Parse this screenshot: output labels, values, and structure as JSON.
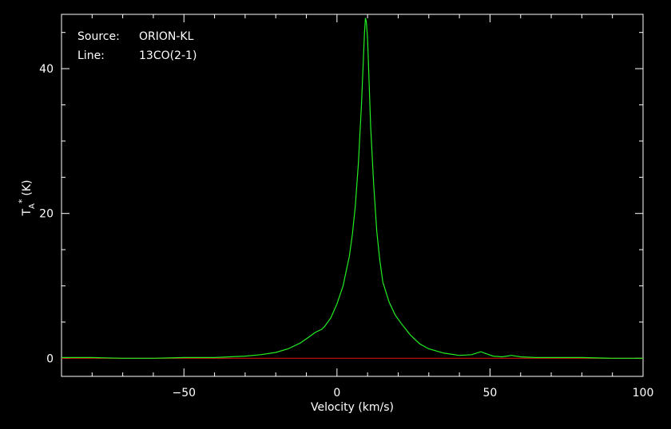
{
  "chart_data": {
    "type": "line",
    "xlabel": "Velocity (km/s)",
    "ylabel": {
      "main": "T",
      "sub": "A",
      "sup": "*",
      "unit": "(K)"
    },
    "xlim": [
      -90,
      100
    ],
    "ylim": [
      -2.5,
      47.5
    ],
    "x_ticks": [
      -50,
      0,
      50,
      100
    ],
    "y_ticks": [
      0,
      20,
      40
    ],
    "grid": false,
    "colors": {
      "background": "#000000",
      "frame": "#ffffff",
      "spectrum": "#22ee22",
      "baseline": "#cc1111"
    },
    "info": [
      {
        "key": "Source:",
        "value": "ORION-KL"
      },
      {
        "key": "Line:",
        "value": "13CO(2-1)"
      }
    ],
    "series": [
      {
        "x": [
          -90,
          -80,
          -70,
          -60,
          -50,
          -40,
          -35,
          -30,
          -25,
          -20,
          -16,
          -12,
          -9,
          -7,
          -5,
          -4,
          -2,
          0,
          2,
          3,
          4,
          5,
          6,
          7,
          8,
          8.6,
          9,
          9.3,
          9.6,
          10,
          10.5,
          11,
          12,
          13,
          14,
          15,
          17,
          19,
          21,
          24,
          27,
          30,
          35,
          40,
          44,
          47,
          49,
          51,
          54,
          57,
          60,
          65,
          70,
          80,
          90,
          100
        ],
        "y": [
          0.1,
          0.1,
          0.0,
          0.0,
          0.1,
          0.1,
          0.2,
          0.3,
          0.5,
          0.8,
          1.3,
          2.1,
          3.0,
          3.6,
          4.0,
          4.4,
          5.6,
          7.5,
          10.0,
          12.0,
          14.0,
          17.0,
          21.0,
          27.0,
          35.0,
          41.0,
          45.0,
          47.0,
          46.5,
          44.0,
          38.0,
          32.0,
          24.0,
          17.5,
          13.5,
          10.5,
          7.8,
          6.0,
          4.8,
          3.2,
          2.0,
          1.3,
          0.7,
          0.4,
          0.5,
          0.9,
          0.6,
          0.3,
          0.2,
          0.4,
          0.2,
          0.1,
          0.1,
          0.1,
          0.0,
          0.0
        ]
      }
    ],
    "baseline": 0
  }
}
